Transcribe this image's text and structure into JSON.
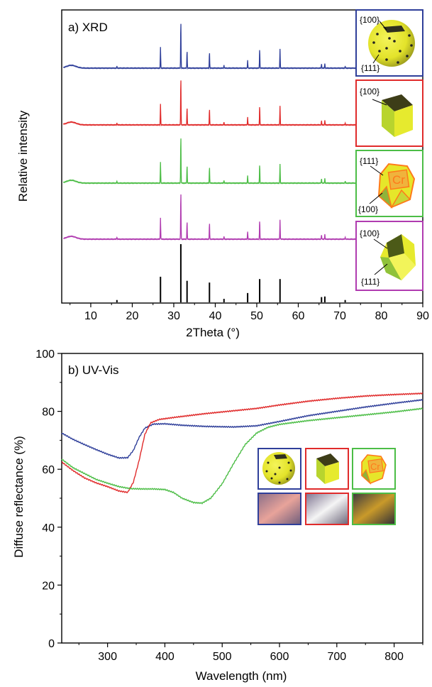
{
  "colors": {
    "blue": "#2f3f9a",
    "red": "#e02b2b",
    "green": "#4cbd46",
    "purple": "#b03bb0",
    "black": "#000000",
    "yellow": "#e6e62a",
    "olive": "#5a5a1a",
    "orange": "#ff7a1a"
  },
  "chart_data": [
    {
      "type": "line",
      "panel_label": "a) XRD",
      "xlabel": "2Theta (°)",
      "ylabel": "Relative intensity",
      "xlim": [
        3,
        90
      ],
      "xticks": [
        10,
        20,
        30,
        40,
        50,
        60,
        70,
        80,
        90
      ],
      "y_ticks_shown": false,
      "reference_pattern": {
        "color": "#000000",
        "peaks": [
          {
            "x": 16.3,
            "h": 0.04
          },
          {
            "x": 26.8,
            "h": 0.44
          },
          {
            "x": 31.7,
            "h": 1.0
          },
          {
            "x": 33.2,
            "h": 0.37
          },
          {
            "x": 38.6,
            "h": 0.34
          },
          {
            "x": 42.1,
            "h": 0.06
          },
          {
            "x": 47.8,
            "h": 0.16
          },
          {
            "x": 50.7,
            "h": 0.4
          },
          {
            "x": 55.6,
            "h": 0.4
          },
          {
            "x": 65.6,
            "h": 0.09
          },
          {
            "x": 66.4,
            "h": 0.1
          },
          {
            "x": 71.3,
            "h": 0.04
          }
        ]
      },
      "series": [
        {
          "color": "#2f3f9a",
          "offset": 4
        },
        {
          "color": "#e02b2b",
          "offset": 3
        },
        {
          "color": "#4cbd46",
          "offset": 2
        },
        {
          "color": "#b03bb0",
          "offset": 1
        }
      ],
      "insets": [
        {
          "frame_color": "#2f3f9a",
          "shape": "sphere",
          "labels": [
            "{100}",
            "{111}"
          ]
        },
        {
          "frame_color": "#e02b2b",
          "shape": "cube",
          "labels": [
            "{100}"
          ]
        },
        {
          "frame_color": "#4cbd46",
          "shape": "cuboctahedron",
          "labels": [
            "{111}",
            "{100}"
          ],
          "face_text": "Cr"
        },
        {
          "frame_color": "#b03bb0",
          "shape": "truncated-cube",
          "labels": [
            "{100}",
            "{111}"
          ]
        }
      ]
    },
    {
      "type": "line",
      "panel_label": "b) UV-Vis",
      "xlabel": "Wavelength (nm)",
      "ylabel": "Diffuse reflectance (%)",
      "xlim": [
        220,
        850
      ],
      "ylim": [
        0,
        100
      ],
      "xticks": [
        300,
        400,
        500,
        600,
        700,
        800
      ],
      "yticks": [
        0,
        20,
        40,
        60,
        80,
        100
      ],
      "series": [
        {
          "color": "#2f3f9a",
          "x": [
            220,
            240,
            260,
            280,
            300,
            320,
            335,
            345,
            355,
            365,
            380,
            400,
            430,
            470,
            520,
            560,
            600,
            650,
            700,
            750,
            800,
            850
          ],
          "y": [
            72.5,
            70.3,
            68.5,
            66.8,
            65.2,
            63.9,
            64.0,
            66.5,
            71.0,
            74.2,
            75.6,
            75.7,
            75.2,
            74.8,
            74.6,
            75.0,
            76.5,
            78.5,
            80.0,
            81.5,
            82.8,
            84.0
          ]
        },
        {
          "color": "#e02b2b",
          "x": [
            220,
            240,
            260,
            280,
            300,
            320,
            335,
            345,
            355,
            365,
            375,
            390,
            420,
            470,
            520,
            560,
            600,
            650,
            700,
            750,
            800,
            850
          ],
          "y": [
            62.5,
            59.5,
            57.0,
            55.3,
            54.0,
            52.5,
            52.0,
            55.5,
            63.0,
            72.0,
            76.0,
            77.2,
            78.0,
            79.2,
            80.2,
            81.0,
            82.2,
            83.5,
            84.5,
            85.3,
            85.8,
            86.2
          ]
        },
        {
          "color": "#4cbd46",
          "x": [
            220,
            240,
            260,
            280,
            300,
            320,
            340,
            360,
            380,
            400,
            415,
            430,
            450,
            465,
            480,
            500,
            520,
            540,
            560,
            580,
            600,
            650,
            700,
            750,
            800,
            850
          ],
          "y": [
            63.5,
            60.5,
            58.5,
            56.5,
            55.2,
            54.0,
            53.3,
            53.2,
            53.2,
            53.0,
            52.0,
            50.0,
            48.5,
            48.3,
            50.0,
            55.0,
            62.0,
            68.5,
            72.5,
            74.5,
            75.5,
            76.8,
            77.8,
            78.8,
            79.8,
            81.0
          ]
        }
      ],
      "inset": {
        "frame_colors": [
          "#2f3f9a",
          "#e02b2b",
          "#4cbd46"
        ],
        "top_row": [
          "sphere",
          "cube",
          "cuboctahedron"
        ],
        "face_text": "Cr",
        "bottom_row": [
          {
            "color": "pink powder"
          },
          {
            "color": "white powder"
          },
          {
            "color": "gold powder"
          }
        ]
      }
    }
  ]
}
